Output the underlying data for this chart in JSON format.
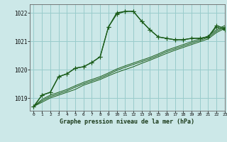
{
  "title": "Graphe pression niveau de la mer (hPa)",
  "bg_color": "#cce8e8",
  "grid_color": "#99cccc",
  "line_color": "#1a5c1a",
  "xlim": [
    -0.5,
    23
  ],
  "ylim": [
    1018.55,
    1022.3
  ],
  "yticks": [
    1019,
    1020,
    1021,
    1022
  ],
  "xticks": [
    0,
    1,
    2,
    3,
    4,
    5,
    6,
    7,
    8,
    9,
    10,
    11,
    12,
    13,
    14,
    15,
    16,
    17,
    18,
    19,
    20,
    21,
    22,
    23
  ],
  "series_main": [
    1018.7,
    1019.1,
    1019.2,
    1019.75,
    1019.85,
    1020.05,
    1020.1,
    1020.25,
    1020.45,
    1021.5,
    1022.0,
    1022.05,
    1022.05,
    1021.7,
    1021.4,
    1021.15,
    1021.1,
    1021.05,
    1021.05,
    1021.1,
    1021.1,
    1021.15,
    1021.55,
    1021.45
  ],
  "series2": [
    1018.7,
    1019.1,
    1019.2,
    1019.75,
    1019.85,
    1020.05,
    1020.1,
    1020.25,
    1020.45,
    1021.5,
    1021.95,
    1022.05,
    1022.05,
    1021.7,
    1021.4,
    1021.15,
    1021.1,
    1021.05,
    1021.05,
    1021.1,
    1021.1,
    1021.15,
    1021.5,
    1021.4
  ],
  "series_lin1": [
    1018.7,
    1018.85,
    1019.0,
    1019.1,
    1019.2,
    1019.3,
    1019.45,
    1019.55,
    1019.65,
    1019.78,
    1019.9,
    1020.0,
    1020.1,
    1020.22,
    1020.33,
    1020.45,
    1020.57,
    1020.68,
    1020.78,
    1020.88,
    1020.98,
    1021.08,
    1021.3,
    1021.45
  ],
  "series_lin2": [
    1018.7,
    1018.9,
    1019.05,
    1019.15,
    1019.25,
    1019.38,
    1019.5,
    1019.6,
    1019.7,
    1019.83,
    1019.97,
    1020.08,
    1020.18,
    1020.28,
    1020.38,
    1020.5,
    1020.63,
    1020.73,
    1020.83,
    1020.93,
    1021.03,
    1021.13,
    1021.35,
    1021.5
  ],
  "series_lin3": [
    1018.7,
    1018.95,
    1019.1,
    1019.2,
    1019.3,
    1019.43,
    1019.55,
    1019.65,
    1019.75,
    1019.88,
    1020.02,
    1020.13,
    1020.23,
    1020.33,
    1020.43,
    1020.55,
    1020.68,
    1020.78,
    1020.88,
    1020.98,
    1021.08,
    1021.18,
    1021.4,
    1021.55
  ]
}
